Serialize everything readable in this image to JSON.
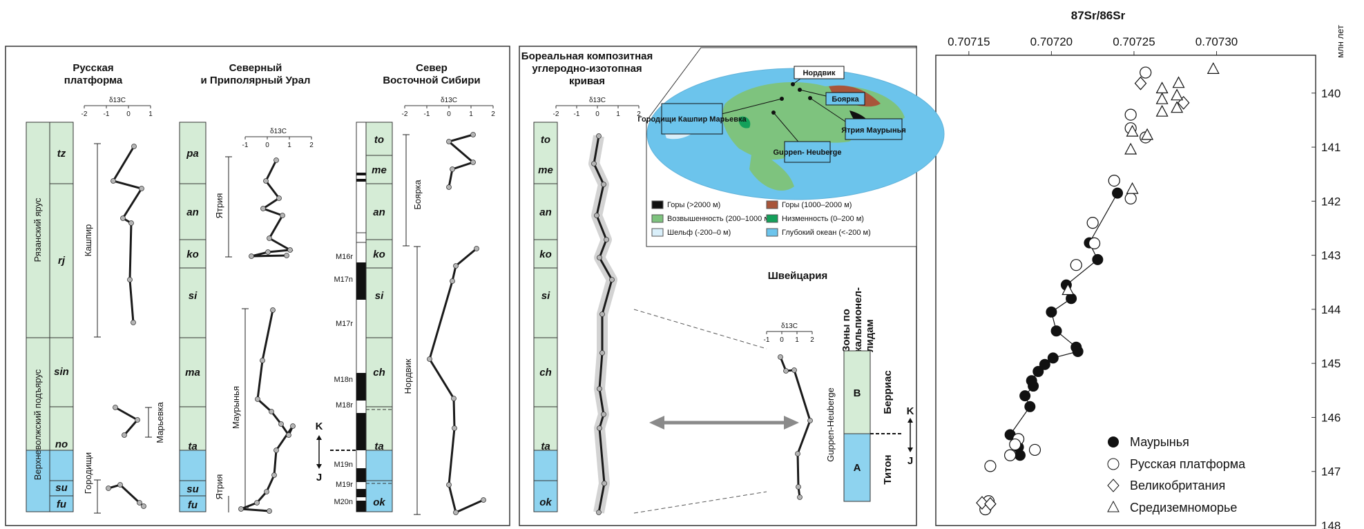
{
  "colors": {
    "green_stage": "#d5ecd6",
    "blue_stage": "#8ed3ef",
    "curve": "#1a1a1a",
    "point_fill": "#b5b5b5",
    "envelope": "#c8c8c8",
    "arrow": "#8a8a8a"
  },
  "regions": {
    "russian": {
      "title": [
        "Русская",
        "платформа"
      ]
    },
    "ural": {
      "title": [
        "Северный",
        "и Приполярный Урал"
      ]
    },
    "siberia": {
      "title": [
        "Север",
        "Восточной Сибири"
      ]
    },
    "composite": {
      "title": [
        "Бореальная композитная",
        "углеродно-изотопная",
        "кривая"
      ]
    },
    "swiss": {
      "title": "Швейцария",
      "zones_header": [
        "Зоны по",
        "кальпионел-",
        "лидам"
      ]
    }
  },
  "axis_label": "δ13C",
  "russian": {
    "ryazan_label": "Рязанский ярус",
    "volga_label": "Верхневолжский подъярус",
    "stages": [
      "tz",
      "rj",
      "sin",
      "no",
      "su",
      "fu"
    ],
    "sections": [
      "Кашпир",
      "Марьевка",
      "Городищи"
    ]
  },
  "ural": {
    "stages": [
      "pa",
      "an",
      "ko",
      "si",
      "ma",
      "ta",
      "su",
      "fu"
    ],
    "sections": [
      "Ятрия",
      "Маурынья",
      "Ятрия"
    ]
  },
  "siberia": {
    "stages": [
      "to",
      "me",
      "an",
      "ko",
      "si",
      "ch",
      "ta",
      "ok"
    ],
    "sections": [
      "Боярка",
      "Нордвик"
    ],
    "magneto": [
      "M16r",
      "M17n",
      "M17r",
      "M18n",
      "M18r",
      "M19n",
      "M19r",
      "M20n"
    ],
    "boundary_upper": "K",
    "boundary_lower": "J"
  },
  "composite": {
    "stages": [
      "to",
      "me",
      "an",
      "ko",
      "si",
      "ch",
      "ta",
      "ok"
    ]
  },
  "swiss": {
    "section": "Guppen-Heuberge",
    "zone_b": "B",
    "zone_a": "A",
    "berrias": "Берриас",
    "titon": "Титон",
    "boundary_upper": "K",
    "boundary_lower": "J"
  },
  "map": {
    "sites": [
      "Нордвик",
      "Боярка",
      "Ятрия Маурынья",
      "Городищи Кашпир Марьевка",
      "Guppen- Heuberge"
    ],
    "legend": [
      {
        "label": "Горы (>2000 м)",
        "color": "#111111"
      },
      {
        "label": "Горы (1000–2000 м)",
        "color": "#a8553a"
      },
      {
        "label": "Возвышенность (200–1000 м)",
        "color": "#7ec37e"
      },
      {
        "label": "Низменность (0–200 м)",
        "color": "#14a05a"
      },
      {
        "label": "Шельф (-200–0 м)",
        "color": "#d9effa"
      },
      {
        "label": "Глубокий океан (<-200 м)",
        "color": "#6cc4ec"
      }
    ]
  },
  "chart_data": {
    "type": "scatter",
    "title": "87Sr/86Sr",
    "xlabel": "87Sr/86Sr",
    "ylabel": "млн лет",
    "xlim": [
      0.70713,
      0.70736
    ],
    "ylim": [
      148,
      139.3
    ],
    "x_ticks": [
      "0.70715",
      "0.70720",
      "0.70725",
      "0.70730"
    ],
    "y_ticks": [
      "140",
      "141",
      "142",
      "143",
      "144",
      "145",
      "146",
      "147",
      "148"
    ],
    "series": [
      {
        "name": "Маурынья",
        "marker": "filled-circle",
        "connected": true,
        "points": [
          [
            0.70724,
            141.85
          ],
          [
            0.707223,
            142.77
          ],
          [
            0.707228,
            143.08
          ],
          [
            0.707209,
            143.55
          ],
          [
            0.707212,
            143.8
          ],
          [
            0.7072,
            144.05
          ],
          [
            0.707203,
            144.4
          ],
          [
            0.707215,
            144.7
          ],
          [
            0.707216,
            144.78
          ],
          [
            0.707201,
            144.9
          ],
          [
            0.707196,
            145.02
          ],
          [
            0.707192,
            145.15
          ],
          [
            0.707188,
            145.32
          ],
          [
            0.707189,
            145.42
          ],
          [
            0.707184,
            145.6
          ],
          [
            0.707187,
            145.8
          ],
          [
            0.707175,
            146.32
          ],
          [
            0.70718,
            146.55
          ],
          [
            0.707181,
            146.7
          ]
        ]
      },
      {
        "name": "Русская платформа",
        "marker": "open-circle",
        "points": [
          [
            0.707257,
            139.62
          ],
          [
            0.707248,
            140.4
          ],
          [
            0.707248,
            140.65
          ],
          [
            0.707257,
            140.82
          ],
          [
            0.707238,
            141.62
          ],
          [
            0.707248,
            141.95
          ],
          [
            0.707225,
            142.4
          ],
          [
            0.707226,
            142.78
          ],
          [
            0.707215,
            143.18
          ],
          [
            0.70718,
            146.4
          ],
          [
            0.707178,
            146.5
          ],
          [
            0.70719,
            146.6
          ],
          [
            0.707175,
            146.7
          ],
          [
            0.707163,
            146.9
          ],
          [
            0.707162,
            147.55
          ],
          [
            0.70716,
            147.7
          ]
        ]
      },
      {
        "name": "Великобритания",
        "marker": "open-diamond",
        "points": [
          [
            0.707254,
            139.82
          ],
          [
            0.70728,
            140.18
          ],
          [
            0.707158,
            147.58
          ],
          [
            0.707163,
            147.6
          ]
        ]
      },
      {
        "name": "Средиземноморье",
        "marker": "open-triangle",
        "points": [
          [
            0.707298,
            139.56
          ],
          [
            0.707277,
            139.82
          ],
          [
            0.707267,
            139.92
          ],
          [
            0.707276,
            140.05
          ],
          [
            0.707267,
            140.12
          ],
          [
            0.707276,
            140.28
          ],
          [
            0.707267,
            140.35
          ],
          [
            0.707249,
            140.72
          ],
          [
            0.707258,
            140.78
          ],
          [
            0.707248,
            141.05
          ],
          [
            0.707249,
            141.78
          ],
          [
            0.70721,
            143.65
          ]
        ]
      }
    ]
  }
}
